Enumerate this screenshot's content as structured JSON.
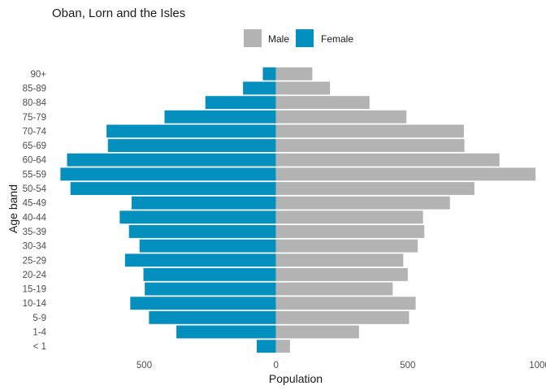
{
  "chart_data": {
    "type": "bar",
    "orientation": "horizontal",
    "layout": "population-pyramid",
    "title": "Oban, Lorn and the Isles",
    "xlabel": "Population",
    "ylabel": "Age band",
    "categories": [
      "< 1",
      "1-4",
      "5-9",
      "10-14",
      "15-19",
      "20-24",
      "25-29",
      "30-34",
      "35-39",
      "40-44",
      "45-49",
      "50-54",
      "55-59",
      "60-64",
      "65-69",
      "70-74",
      "75-79",
      "80-84",
      "85-89",
      "90+"
    ],
    "series": [
      {
        "name": "Male",
        "color": "#b3b3b3",
        "side": "right",
        "values": [
          53,
          315,
          505,
          530,
          443,
          500,
          483,
          538,
          563,
          558,
          660,
          753,
          985,
          848,
          715,
          713,
          495,
          355,
          205,
          138
        ]
      },
      {
        "name": "Female",
        "color": "#0390bf",
        "side": "left",
        "values": [
          73,
          378,
          482,
          553,
          498,
          503,
          573,
          518,
          558,
          593,
          548,
          780,
          818,
          793,
          638,
          643,
          423,
          268,
          125,
          50
        ]
      }
    ],
    "xlim": [
      -850,
      1000
    ],
    "xticks": [
      -500,
      0,
      500,
      1000
    ],
    "xtick_labels": [
      "500",
      "0",
      "500",
      "1000"
    ],
    "legend": {
      "position": "top",
      "items": [
        "Male",
        "Female"
      ]
    },
    "grid": false
  }
}
